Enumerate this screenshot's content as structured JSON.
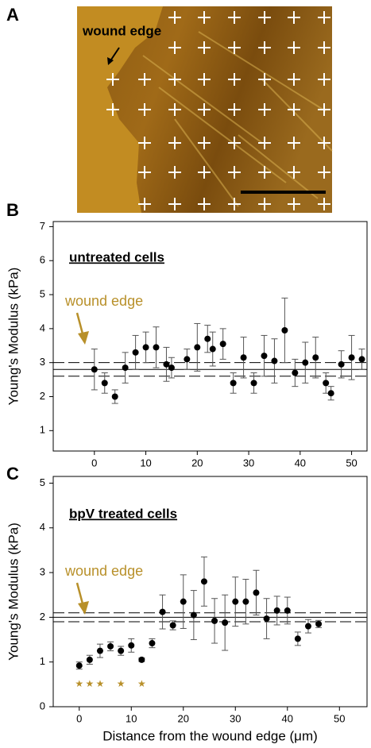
{
  "image_panel": {
    "label": "A",
    "annotation": "wound edge"
  },
  "chart_data": [
    {
      "type": "scatter",
      "panel": "B",
      "annotation": "untreated cells",
      "arrow_text": "wound edge",
      "ylabel": "Young's Modulus (kPa)",
      "x": [
        0,
        2,
        4,
        6,
        8,
        10,
        12,
        14,
        15,
        18,
        20,
        22,
        23,
        25,
        27,
        29,
        31,
        33,
        35,
        37,
        39,
        41,
        43,
        45,
        46,
        48,
        50,
        52
      ],
      "values": [
        2.8,
        2.4,
        2.0,
        2.85,
        3.3,
        3.45,
        3.45,
        2.95,
        2.85,
        3.1,
        3.45,
        3.7,
        3.4,
        3.55,
        2.4,
        3.15,
        2.4,
        3.2,
        3.05,
        3.95,
        2.7,
        3.0,
        3.15,
        2.4,
        2.1,
        2.95,
        3.15,
        3.1
      ],
      "errors": [
        0.6,
        0.3,
        0.2,
        0.45,
        0.5,
        0.45,
        0.6,
        0.5,
        0.3,
        0.3,
        0.7,
        0.4,
        0.5,
        0.45,
        0.3,
        0.6,
        0.3,
        0.6,
        0.65,
        0.95,
        0.4,
        0.6,
        0.6,
        0.3,
        0.2,
        0.4,
        0.65,
        0.3
      ],
      "color": "#000000",
      "mean": 2.8,
      "band": [
        2.6,
        3.0
      ],
      "xlim": [
        -8,
        53
      ],
      "ylim": [
        0.4,
        7.15
      ],
      "xticks": [
        0,
        10,
        20,
        30,
        40,
        50
      ],
      "yticks": [
        1,
        2,
        3,
        4,
        5,
        6,
        7
      ]
    },
    {
      "type": "scatter",
      "panel": "C",
      "annotation": "bpV treated cells",
      "arrow_text": "wound edge",
      "ylabel": "Young's Modulus (kPa)",
      "xlabel": "Distance from the wound edge (μm)",
      "x": [
        0,
        2,
        4,
        6,
        8,
        10,
        12,
        14,
        16,
        18,
        20,
        22,
        24,
        26,
        28,
        30,
        32,
        34,
        36,
        38,
        40,
        42,
        44,
        46
      ],
      "values": [
        0.92,
        1.05,
        1.25,
        1.35,
        1.25,
        1.37,
        1.05,
        1.42,
        2.12,
        1.82,
        2.35,
        2.05,
        2.8,
        1.92,
        1.88,
        2.35,
        2.35,
        2.55,
        1.97,
        2.15,
        2.15,
        1.52,
        1.8,
        1.85
      ],
      "errors": [
        0.08,
        0.1,
        0.15,
        0.1,
        0.1,
        0.15,
        0.04,
        0.1,
        0.38,
        0.1,
        0.6,
        0.55,
        0.55,
        0.5,
        0.62,
        0.55,
        0.5,
        0.5,
        0.45,
        0.32,
        0.3,
        0.15,
        0.15,
        0.08
      ],
      "color": "#000000",
      "mean": 2.0,
      "band": [
        1.9,
        2.1
      ],
      "significance": {
        "label": "★",
        "x": [
          0,
          2,
          4,
          8,
          12
        ],
        "y": 0.5
      },
      "xlim": [
        -5,
        55.3
      ],
      "ylim": [
        0,
        5.15
      ],
      "xticks": [
        0,
        10,
        20,
        30,
        40,
        50
      ],
      "yticks": [
        0,
        1,
        2,
        3,
        4,
        5
      ]
    }
  ]
}
